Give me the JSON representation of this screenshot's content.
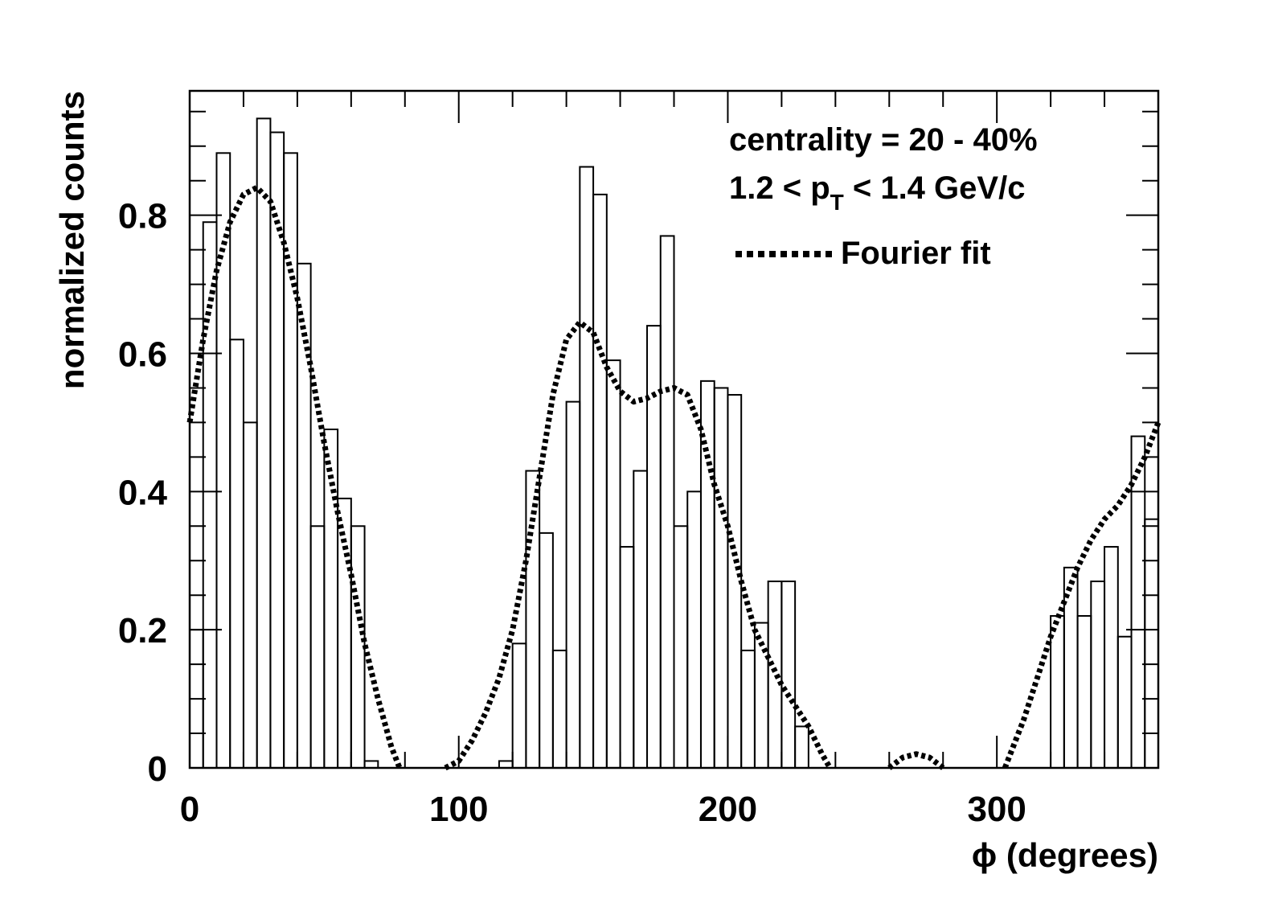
{
  "chart_data": {
    "type": "histogram",
    "xlabel": "ϕ (degrees)",
    "ylabel": "normalized counts",
    "xlim": [
      0,
      360
    ],
    "ylim": [
      0,
      0.98
    ],
    "x_ticks": [
      0,
      100,
      200,
      300
    ],
    "x_tick_labels": [
      "0",
      "100",
      "200",
      "300"
    ],
    "y_ticks": [
      0,
      0.2,
      0.4,
      0.6,
      0.8
    ],
    "y_tick_labels": [
      "0",
      "0.2",
      "0.4",
      "0.6",
      "0.8"
    ],
    "grid": false,
    "legend_position": "top-right",
    "annotations": {
      "centrality": "centrality = 20 - 40%",
      "pt_left": "1.2 < p",
      "pt_sub": "T",
      "pt_right": " < 1.4 GeV/c"
    },
    "series": [
      {
        "kind": "histogram",
        "bin_edges": [
          0,
          5,
          10,
          15,
          20,
          25,
          30,
          35,
          40,
          45,
          50,
          55,
          60,
          65,
          70,
          75,
          80,
          85,
          90,
          95,
          100,
          105,
          110,
          115,
          120,
          125,
          130,
          135,
          140,
          145,
          150,
          155,
          160,
          165,
          170,
          175,
          180,
          185,
          190,
          195,
          200,
          205,
          210,
          215,
          220,
          225,
          230,
          235,
          240,
          245,
          250,
          255,
          260,
          265,
          270,
          275,
          280,
          285,
          290,
          295,
          300,
          305,
          310,
          315,
          320,
          325,
          330,
          335,
          340,
          345,
          350,
          355,
          360
        ],
        "values": [
          0.2,
          0.79,
          0.89,
          0.62,
          0.5,
          0.94,
          0.92,
          0.89,
          0.73,
          0.35,
          0.49,
          0.39,
          0.35,
          0.01,
          0,
          0,
          0,
          0,
          0,
          0,
          0,
          0,
          0,
          0.01,
          0.18,
          0.43,
          0.34,
          0.17,
          0.53,
          0.87,
          0.83,
          0.59,
          0.32,
          0.43,
          0.64,
          0.77,
          0.35,
          0.4,
          0.56,
          0.55,
          0.54,
          0.17,
          0.21,
          0.27,
          0.27,
          0.06,
          0,
          0,
          0,
          0,
          0,
          0,
          0,
          0,
          0,
          0,
          0,
          0,
          0,
          0,
          0,
          0,
          0,
          0,
          0.22,
          0.29,
          0.22,
          0.27,
          0.32,
          0.19,
          0.48,
          0.36
        ]
      },
      {
        "kind": "fit",
        "name": "Fourier fit",
        "style": "dotted",
        "x": [
          0,
          5,
          10,
          15,
          20,
          25,
          30,
          35,
          40,
          45,
          50,
          55,
          60,
          65,
          70,
          75,
          78,
          80,
          85,
          90,
          95,
          100,
          105,
          110,
          115,
          120,
          125,
          130,
          135,
          140,
          145,
          150,
          155,
          160,
          165,
          170,
          175,
          180,
          185,
          190,
          195,
          200,
          205,
          210,
          215,
          220,
          225,
          230,
          235,
          238,
          240,
          255,
          260,
          265,
          270,
          275,
          280,
          285,
          300,
          303,
          305,
          310,
          315,
          320,
          325,
          330,
          335,
          340,
          345,
          350,
          355,
          360
        ],
        "y": [
          0.5,
          0.62,
          0.72,
          0.79,
          0.83,
          0.84,
          0.82,
          0.76,
          0.68,
          0.58,
          0.47,
          0.37,
          0.28,
          0.18,
          0.1,
          0.03,
          0,
          0,
          0,
          0,
          0,
          0.01,
          0.04,
          0.08,
          0.13,
          0.2,
          0.3,
          0.42,
          0.54,
          0.62,
          0.645,
          0.63,
          0.58,
          0.545,
          0.53,
          0.535,
          0.545,
          0.55,
          0.54,
          0.49,
          0.41,
          0.35,
          0.27,
          0.2,
          0.16,
          0.12,
          0.09,
          0.06,
          0.02,
          0,
          0,
          0,
          0,
          0.015,
          0.02,
          0.015,
          0,
          0,
          0,
          0,
          0.02,
          0.07,
          0.13,
          0.19,
          0.24,
          0.29,
          0.33,
          0.36,
          0.38,
          0.41,
          0.45,
          0.5
        ]
      }
    ]
  }
}
